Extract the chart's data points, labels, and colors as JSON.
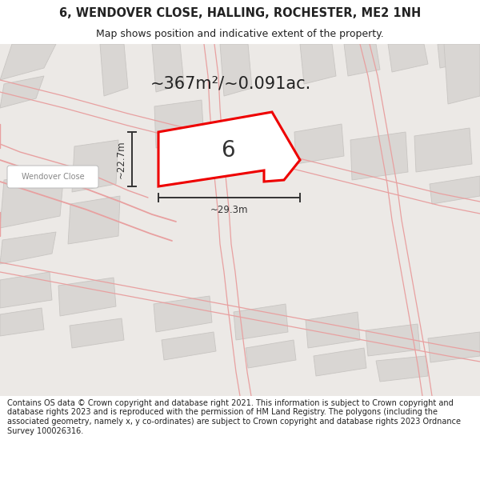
{
  "title_line1": "6, WENDOVER CLOSE, HALLING, ROCHESTER, ME2 1NH",
  "title_line2": "Map shows position and indicative extent of the property.",
  "area_text": "~367m²/~0.091ac.",
  "property_number": "6",
  "dim_vertical": "~22.7m",
  "dim_horizontal": "~29.3m",
  "road_label": "Wendover Close",
  "footer_text": "Contains OS data © Crown copyright and database right 2021. This information is subject to Crown copyright and database rights 2023 and is reproduced with the permission of HM Land Registry. The polygons (including the associated geometry, namely x, y co-ordinates) are subject to Crown copyright and database rights 2023 Ordnance Survey 100026316.",
  "map_bg": "#ece9e6",
  "building_fill": "#d9d6d3",
  "building_edge": "#c8c5c2",
  "road_line_color": "#e8a0a0",
  "plot_fill": "#ffffff",
  "plot_edge": "#ee0000",
  "plot_edge_lw": 2.2,
  "title_bg": "#ffffff",
  "footer_bg": "#ffffff",
  "dim_line_color": "#333333",
  "text_color": "#222222",
  "road_label_color": "#888888"
}
